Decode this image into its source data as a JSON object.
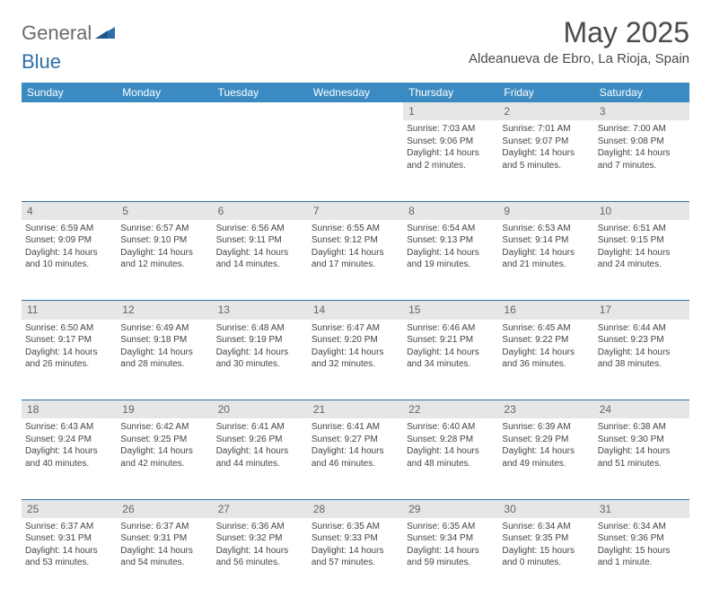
{
  "logo": {
    "text_general": "General",
    "text_blue": "Blue"
  },
  "title": "May 2025",
  "location": "Aldeanueva de Ebro, La Rioja, Spain",
  "colors": {
    "header_bg": "#3b8bc2",
    "header_text": "#ffffff",
    "daynum_bg": "#e6e6e6",
    "border": "#2f6fa8",
    "logo_blue": "#2f6fa8",
    "logo_gray": "#6b6b6b"
  },
  "weekdays": [
    "Sunday",
    "Monday",
    "Tuesday",
    "Wednesday",
    "Thursday",
    "Friday",
    "Saturday"
  ],
  "weeks": [
    {
      "nums": [
        "",
        "",
        "",
        "",
        "1",
        "2",
        "3"
      ],
      "cells": [
        null,
        null,
        null,
        null,
        {
          "sunrise": "Sunrise: 7:03 AM",
          "sunset": "Sunset: 9:06 PM",
          "daylight1": "Daylight: 14 hours",
          "daylight2": "and 2 minutes."
        },
        {
          "sunrise": "Sunrise: 7:01 AM",
          "sunset": "Sunset: 9:07 PM",
          "daylight1": "Daylight: 14 hours",
          "daylight2": "and 5 minutes."
        },
        {
          "sunrise": "Sunrise: 7:00 AM",
          "sunset": "Sunset: 9:08 PM",
          "daylight1": "Daylight: 14 hours",
          "daylight2": "and 7 minutes."
        }
      ]
    },
    {
      "nums": [
        "4",
        "5",
        "6",
        "7",
        "8",
        "9",
        "10"
      ],
      "cells": [
        {
          "sunrise": "Sunrise: 6:59 AM",
          "sunset": "Sunset: 9:09 PM",
          "daylight1": "Daylight: 14 hours",
          "daylight2": "and 10 minutes."
        },
        {
          "sunrise": "Sunrise: 6:57 AM",
          "sunset": "Sunset: 9:10 PM",
          "daylight1": "Daylight: 14 hours",
          "daylight2": "and 12 minutes."
        },
        {
          "sunrise": "Sunrise: 6:56 AM",
          "sunset": "Sunset: 9:11 PM",
          "daylight1": "Daylight: 14 hours",
          "daylight2": "and 14 minutes."
        },
        {
          "sunrise": "Sunrise: 6:55 AM",
          "sunset": "Sunset: 9:12 PM",
          "daylight1": "Daylight: 14 hours",
          "daylight2": "and 17 minutes."
        },
        {
          "sunrise": "Sunrise: 6:54 AM",
          "sunset": "Sunset: 9:13 PM",
          "daylight1": "Daylight: 14 hours",
          "daylight2": "and 19 minutes."
        },
        {
          "sunrise": "Sunrise: 6:53 AM",
          "sunset": "Sunset: 9:14 PM",
          "daylight1": "Daylight: 14 hours",
          "daylight2": "and 21 minutes."
        },
        {
          "sunrise": "Sunrise: 6:51 AM",
          "sunset": "Sunset: 9:15 PM",
          "daylight1": "Daylight: 14 hours",
          "daylight2": "and 24 minutes."
        }
      ]
    },
    {
      "nums": [
        "11",
        "12",
        "13",
        "14",
        "15",
        "16",
        "17"
      ],
      "cells": [
        {
          "sunrise": "Sunrise: 6:50 AM",
          "sunset": "Sunset: 9:17 PM",
          "daylight1": "Daylight: 14 hours",
          "daylight2": "and 26 minutes."
        },
        {
          "sunrise": "Sunrise: 6:49 AM",
          "sunset": "Sunset: 9:18 PM",
          "daylight1": "Daylight: 14 hours",
          "daylight2": "and 28 minutes."
        },
        {
          "sunrise": "Sunrise: 6:48 AM",
          "sunset": "Sunset: 9:19 PM",
          "daylight1": "Daylight: 14 hours",
          "daylight2": "and 30 minutes."
        },
        {
          "sunrise": "Sunrise: 6:47 AM",
          "sunset": "Sunset: 9:20 PM",
          "daylight1": "Daylight: 14 hours",
          "daylight2": "and 32 minutes."
        },
        {
          "sunrise": "Sunrise: 6:46 AM",
          "sunset": "Sunset: 9:21 PM",
          "daylight1": "Daylight: 14 hours",
          "daylight2": "and 34 minutes."
        },
        {
          "sunrise": "Sunrise: 6:45 AM",
          "sunset": "Sunset: 9:22 PM",
          "daylight1": "Daylight: 14 hours",
          "daylight2": "and 36 minutes."
        },
        {
          "sunrise": "Sunrise: 6:44 AM",
          "sunset": "Sunset: 9:23 PM",
          "daylight1": "Daylight: 14 hours",
          "daylight2": "and 38 minutes."
        }
      ]
    },
    {
      "nums": [
        "18",
        "19",
        "20",
        "21",
        "22",
        "23",
        "24"
      ],
      "cells": [
        {
          "sunrise": "Sunrise: 6:43 AM",
          "sunset": "Sunset: 9:24 PM",
          "daylight1": "Daylight: 14 hours",
          "daylight2": "and 40 minutes."
        },
        {
          "sunrise": "Sunrise: 6:42 AM",
          "sunset": "Sunset: 9:25 PM",
          "daylight1": "Daylight: 14 hours",
          "daylight2": "and 42 minutes."
        },
        {
          "sunrise": "Sunrise: 6:41 AM",
          "sunset": "Sunset: 9:26 PM",
          "daylight1": "Daylight: 14 hours",
          "daylight2": "and 44 minutes."
        },
        {
          "sunrise": "Sunrise: 6:41 AM",
          "sunset": "Sunset: 9:27 PM",
          "daylight1": "Daylight: 14 hours",
          "daylight2": "and 46 minutes."
        },
        {
          "sunrise": "Sunrise: 6:40 AM",
          "sunset": "Sunset: 9:28 PM",
          "daylight1": "Daylight: 14 hours",
          "daylight2": "and 48 minutes."
        },
        {
          "sunrise": "Sunrise: 6:39 AM",
          "sunset": "Sunset: 9:29 PM",
          "daylight1": "Daylight: 14 hours",
          "daylight2": "and 49 minutes."
        },
        {
          "sunrise": "Sunrise: 6:38 AM",
          "sunset": "Sunset: 9:30 PM",
          "daylight1": "Daylight: 14 hours",
          "daylight2": "and 51 minutes."
        }
      ]
    },
    {
      "nums": [
        "25",
        "26",
        "27",
        "28",
        "29",
        "30",
        "31"
      ],
      "cells": [
        {
          "sunrise": "Sunrise: 6:37 AM",
          "sunset": "Sunset: 9:31 PM",
          "daylight1": "Daylight: 14 hours",
          "daylight2": "and 53 minutes."
        },
        {
          "sunrise": "Sunrise: 6:37 AM",
          "sunset": "Sunset: 9:31 PM",
          "daylight1": "Daylight: 14 hours",
          "daylight2": "and 54 minutes."
        },
        {
          "sunrise": "Sunrise: 6:36 AM",
          "sunset": "Sunset: 9:32 PM",
          "daylight1": "Daylight: 14 hours",
          "daylight2": "and 56 minutes."
        },
        {
          "sunrise": "Sunrise: 6:35 AM",
          "sunset": "Sunset: 9:33 PM",
          "daylight1": "Daylight: 14 hours",
          "daylight2": "and 57 minutes."
        },
        {
          "sunrise": "Sunrise: 6:35 AM",
          "sunset": "Sunset: 9:34 PM",
          "daylight1": "Daylight: 14 hours",
          "daylight2": "and 59 minutes."
        },
        {
          "sunrise": "Sunrise: 6:34 AM",
          "sunset": "Sunset: 9:35 PM",
          "daylight1": "Daylight: 15 hours",
          "daylight2": "and 0 minutes."
        },
        {
          "sunrise": "Sunrise: 6:34 AM",
          "sunset": "Sunset: 9:36 PM",
          "daylight1": "Daylight: 15 hours",
          "daylight2": "and 1 minute."
        }
      ]
    }
  ]
}
